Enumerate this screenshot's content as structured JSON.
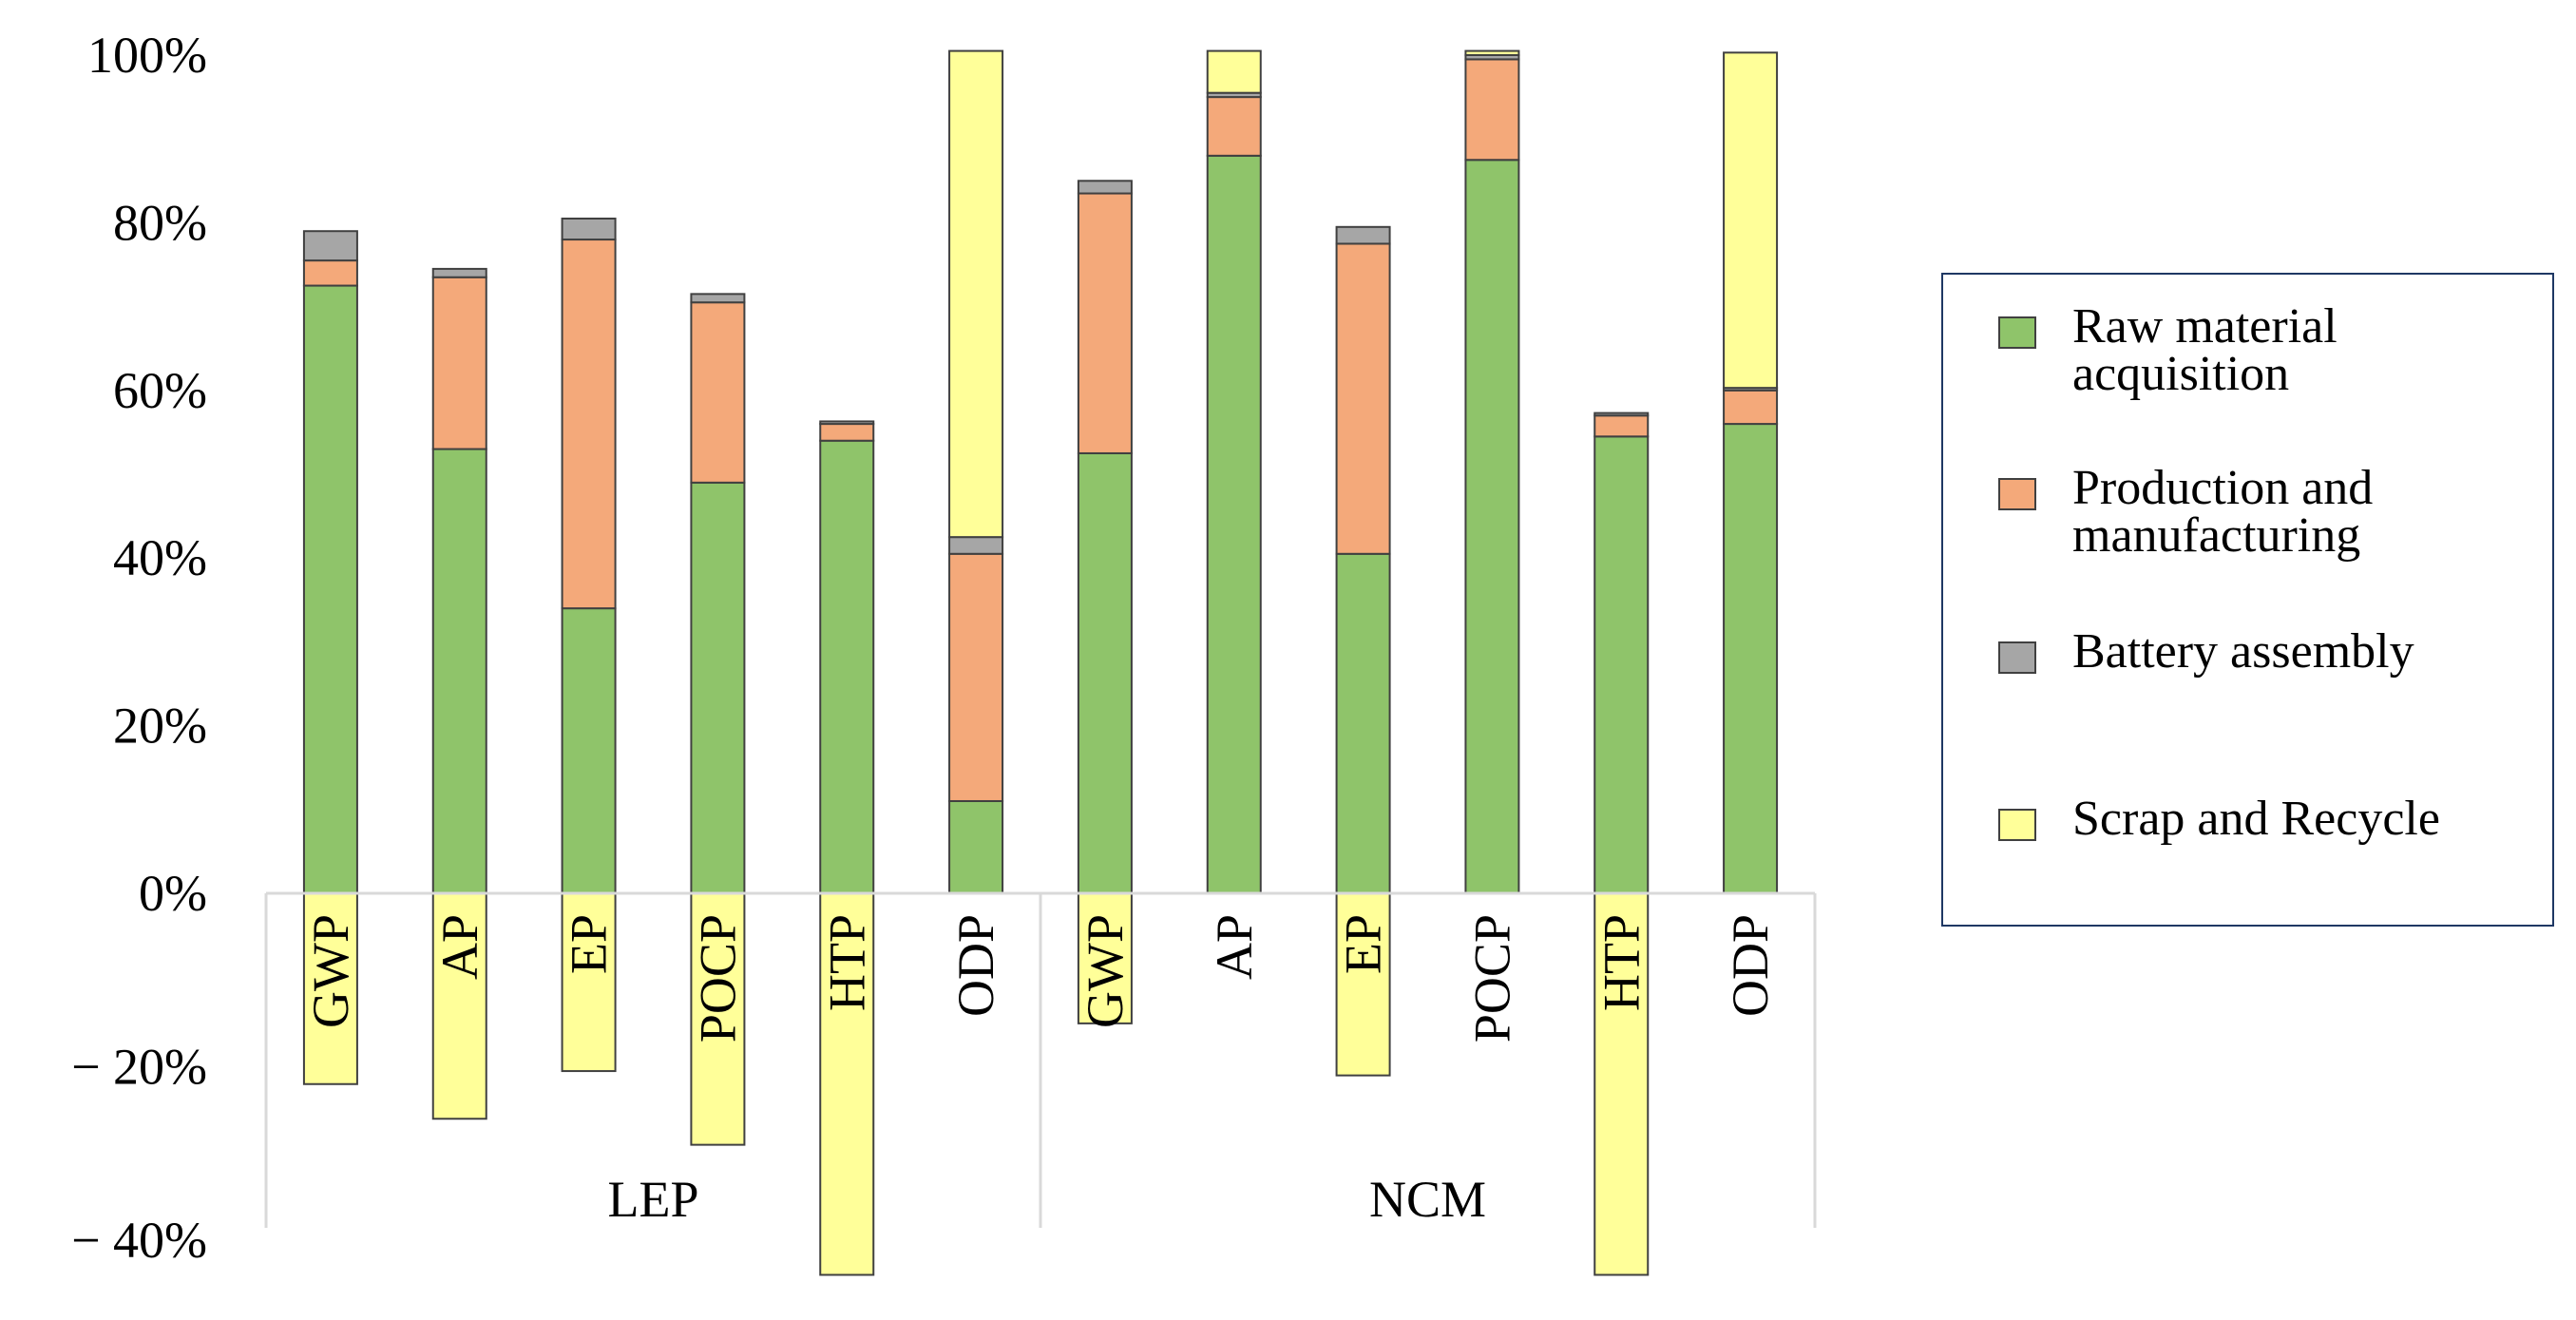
{
  "chart_data": {
    "type": "bar",
    "stacked": true,
    "groups": [
      {
        "label": "LEP",
        "categories": [
          "GWP",
          "AP",
          "EP",
          "POCP",
          "HTP",
          "ODP"
        ]
      },
      {
        "label": "NCM",
        "categories": [
          "GWP",
          "AP",
          "EP",
          "POCP",
          "HTP",
          "ODP"
        ]
      }
    ],
    "categories": [
      "GWP",
      "AP",
      "EP",
      "POCP",
      "HTP",
      "ODP",
      "GWP",
      "AP",
      "EP",
      "POCP",
      "HTP",
      "ODP"
    ],
    "series": [
      {
        "name": "Raw material acquisition",
        "color": "#8fc46a",
        "values": [
          72.5,
          53,
          34,
          49,
          54,
          11,
          52.5,
          88,
          40.5,
          87.5,
          54.5,
          56
        ]
      },
      {
        "name": "Production and manufacturing",
        "color": "#f4a97a",
        "values": [
          3,
          20.5,
          44,
          21.5,
          2,
          29.5,
          31,
          7,
          37,
          12,
          2.5,
          4
        ]
      },
      {
        "name": "Battery assembly",
        "color": "#a6a6a6",
        "values": [
          3.5,
          1,
          2.5,
          1,
          0.3,
          2,
          1.5,
          0.5,
          2,
          0.5,
          0.3,
          0.3
        ]
      },
      {
        "name": "Scrap and Recycle",
        "color": "#ffff99",
        "values": [
          -22,
          -26,
          -20.5,
          -29,
          -44,
          58,
          -15,
          5,
          -21,
          0.5,
          -44,
          40
        ]
      }
    ],
    "y_ticks": [
      "100%",
      "80%",
      "60%",
      "40%",
      "20%",
      "0%",
      "− 20%",
      "− 40%"
    ],
    "ylim": [
      -44,
      100
    ],
    "legend_position": "right"
  }
}
